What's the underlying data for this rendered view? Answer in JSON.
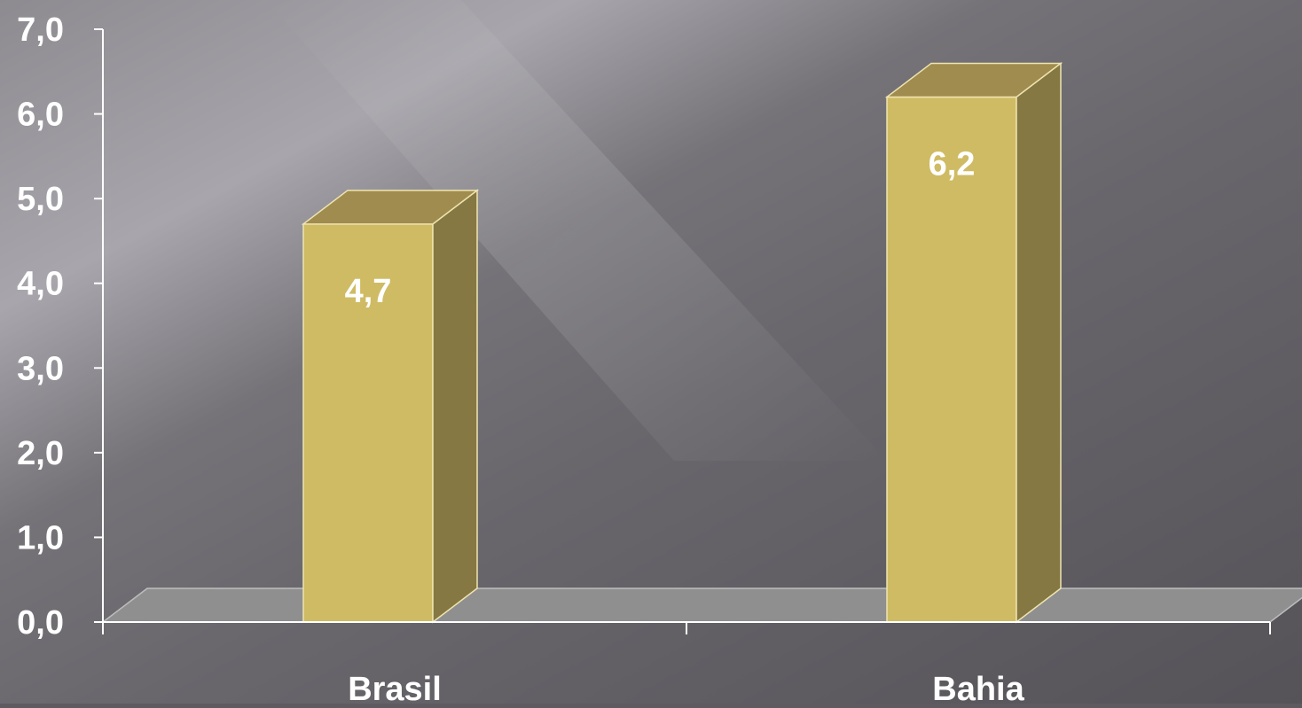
{
  "chart_data": {
    "type": "bar",
    "style": "3d",
    "categories": [
      "Brasil",
      "Bahia"
    ],
    "values": [
      4.7,
      6.2
    ],
    "value_labels": [
      "4,7",
      "6,2"
    ],
    "title": "",
    "xlabel": "",
    "ylabel": "",
    "ylim": [
      0,
      7
    ],
    "yticks": [
      "0,0",
      "1,0",
      "2,0",
      "3,0",
      "4,0",
      "5,0",
      "6,0",
      "7,0"
    ],
    "grid": false,
    "legend": "none"
  },
  "colors": {
    "background_light": "#a6a4aa",
    "background_dark": "#5a585d",
    "bar_front": "#cfbb64",
    "bar_side": "#857842",
    "bar_top": "#a08c4e",
    "floor": "#8f8f8f",
    "axis": "#ffffff",
    "text": "#ffffff"
  }
}
